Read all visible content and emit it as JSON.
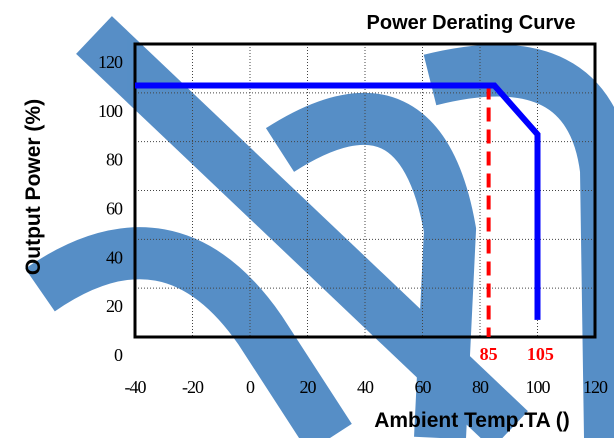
{
  "chart_data": {
    "type": "line",
    "title": "Power Derating Curve",
    "xlabel": "Ambient Temp.TA ()",
    "ylabel": "Output Power (%)",
    "xlim": [
      -40,
      120
    ],
    "ylim": [
      0,
      120
    ],
    "x_ticks": [
      -40,
      -20,
      0,
      20,
      40,
      60,
      80,
      100,
      120
    ],
    "y_ticks": [
      0,
      20,
      40,
      60,
      80,
      100,
      120
    ],
    "grid": true,
    "series": [
      {
        "color": "#0000ff",
        "line_style": "solid",
        "x": [
          -40,
          85,
          100,
          100
        ],
        "y": [
          103,
          103,
          83,
          7
        ]
      }
    ],
    "reference_line": {
      "x": 83,
      "color": "#ff0000",
      "line_style": "dashed"
    },
    "annotations": [
      {
        "text": "85",
        "x": 83,
        "color": "#ff0000"
      },
      {
        "text": "105",
        "x": 101,
        "color": "#ff0000"
      }
    ]
  },
  "watermark": {
    "color": "#2d72b8"
  }
}
